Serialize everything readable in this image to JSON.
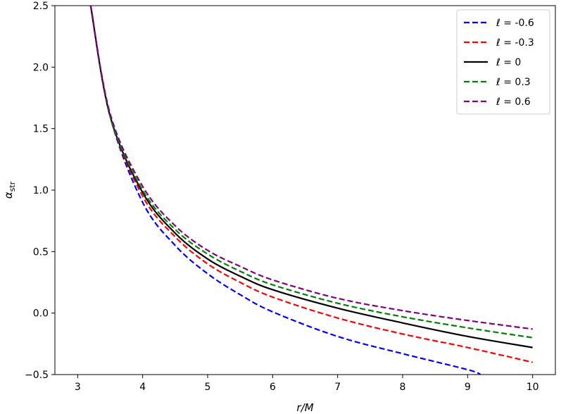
{
  "chart_data": {
    "type": "line",
    "xlabel": "r/M",
    "ylabel_main": "α",
    "ylabel_sub": "str",
    "xlim": [
      2.65,
      10.35
    ],
    "ylim": [
      -0.5,
      2.5
    ],
    "xticks": [
      3,
      4,
      5,
      6,
      7,
      8,
      9,
      10
    ],
    "yticks": [
      -0.5,
      0.0,
      0.5,
      1.0,
      1.5,
      2.0,
      2.5
    ],
    "ytick_labels": [
      "−0.5",
      "0.0",
      "0.5",
      "1.0",
      "1.5",
      "2.0",
      "2.5"
    ],
    "xtick_labels": [
      "3",
      "4",
      "5",
      "6",
      "7",
      "8",
      "9",
      "10"
    ],
    "legend_position": "top-right",
    "series": [
      {
        "name": "ℓ = -0.6",
        "color": "#0000ff",
        "dash": "dashed",
        "x": [
          3.2,
          3.5,
          4.0,
          4.5,
          5.0,
          5.5,
          6.0,
          7.0,
          8.0,
          9.0,
          9.2
        ],
        "y": [
          2.5,
          1.6,
          0.9,
          0.55,
          0.32,
          0.15,
          0.01,
          -0.19,
          -0.33,
          -0.46,
          -0.5
        ]
      },
      {
        "name": "ℓ = -0.3",
        "color": "#ff0000",
        "dash": "dashed",
        "x": [
          3.2,
          3.5,
          4.0,
          4.5,
          5.0,
          5.5,
          6.0,
          7.0,
          8.0,
          9.0,
          10.0
        ],
        "y": [
          2.5,
          1.6,
          0.95,
          0.62,
          0.4,
          0.25,
          0.13,
          -0.04,
          -0.17,
          -0.28,
          -0.4
        ]
      },
      {
        "name": "ℓ = 0",
        "color": "#000000",
        "dash": "solid",
        "x": [
          3.2,
          3.5,
          4.0,
          4.5,
          5.0,
          5.5,
          6.0,
          7.0,
          8.0,
          9.0,
          10.0
        ],
        "y": [
          2.5,
          1.6,
          0.98,
          0.65,
          0.44,
          0.3,
          0.19,
          0.04,
          -0.08,
          -0.19,
          -0.28
        ]
      },
      {
        "name": "ℓ = 0.3",
        "color": "#008000",
        "dash": "dashed",
        "x": [
          3.2,
          3.5,
          4.0,
          4.5,
          5.0,
          5.5,
          6.0,
          7.0,
          8.0,
          9.0,
          10.0
        ],
        "y": [
          2.5,
          1.6,
          1.0,
          0.68,
          0.48,
          0.34,
          0.23,
          0.08,
          -0.03,
          -0.12,
          -0.2
        ]
      },
      {
        "name": "ℓ = 0.6",
        "color": "#800080",
        "dash": "dashed",
        "x": [
          3.2,
          3.5,
          4.0,
          4.5,
          5.0,
          5.5,
          6.0,
          7.0,
          8.0,
          9.0,
          10.0
        ],
        "y": [
          2.5,
          1.62,
          1.03,
          0.71,
          0.51,
          0.38,
          0.27,
          0.12,
          0.02,
          -0.06,
          -0.13
        ]
      }
    ]
  }
}
